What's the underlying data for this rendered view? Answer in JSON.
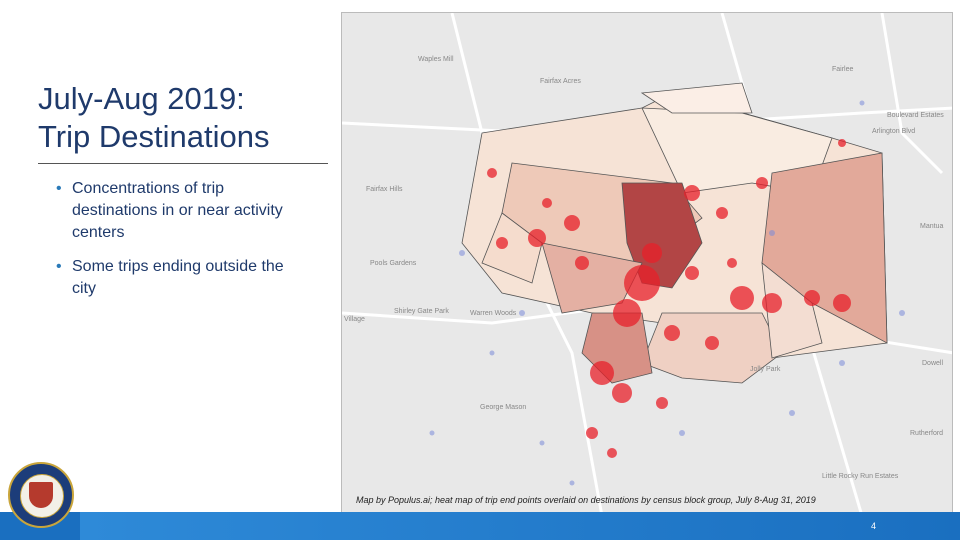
{
  "slide": {
    "title_line1": "July-Aug 2019:",
    "title_line2": "Trip Destinations",
    "bullets": [
      "Concentrations of trip destinations in or near activity centers",
      "Some trips ending outside the city"
    ],
    "caption": "Map by Populus.ai; heat map of trip end points overlaid on destinations by census block group, July 8-Aug 31, 2019",
    "page_number": "4"
  },
  "map": {
    "place_labels": [
      "Waples Mill",
      "Fairfax Acres",
      "Fairlee",
      "Boulevard Estates",
      "Arlington Blvd",
      "Fairfax Hills",
      "Mantua",
      "Pools Gardens",
      "Shirley Gate Park",
      "Warren Woods",
      "Dowell",
      "George Mason",
      "Jolly Park",
      "Rutherford",
      "Little Rocky Run Estates",
      "Village"
    ]
  },
  "logo": {
    "name": "city-seal"
  }
}
